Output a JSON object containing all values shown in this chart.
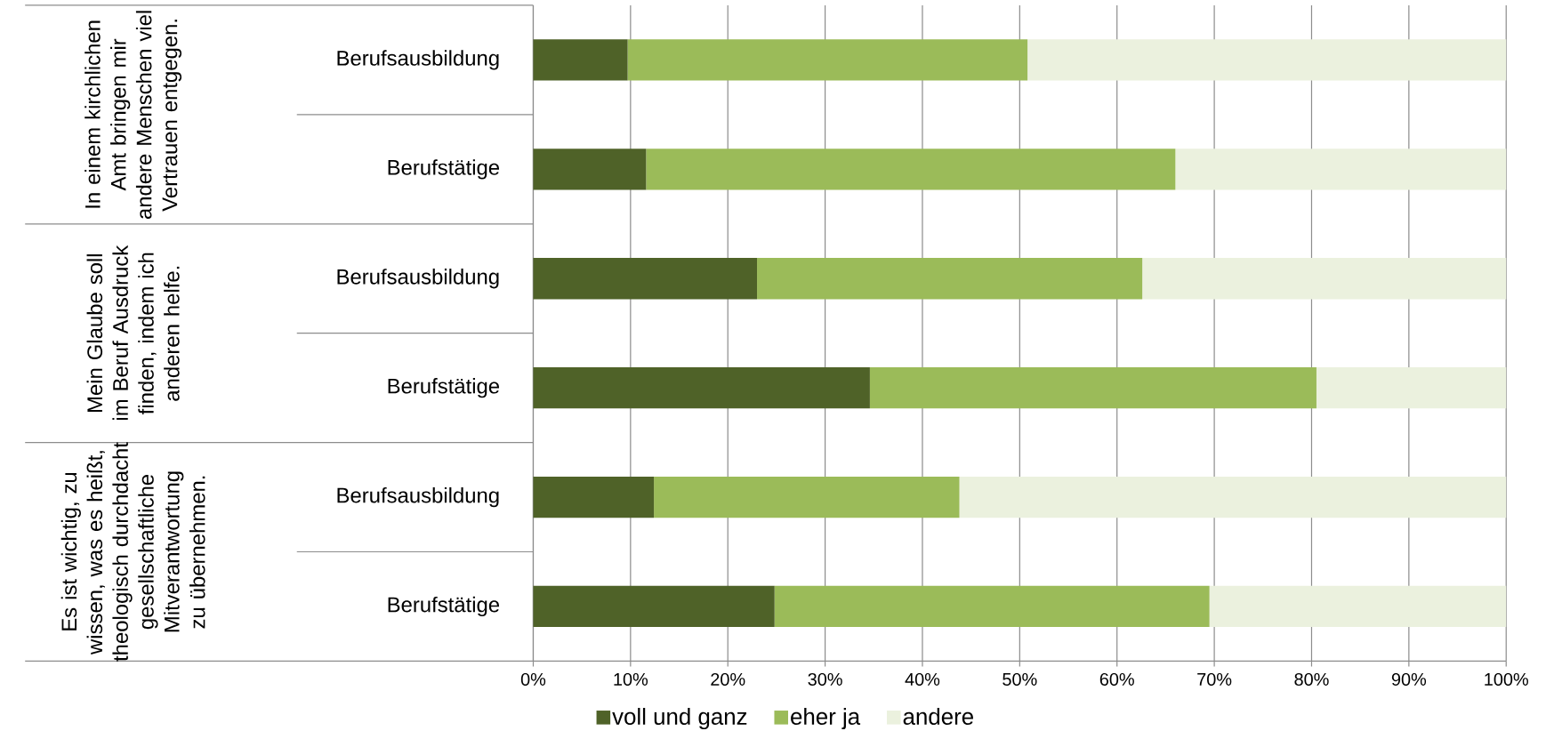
{
  "chart_data": {
    "type": "bar",
    "orientation": "horizontal",
    "stacked": true,
    "categories": [
      "Berufsausbildung",
      "Berufstätige",
      "Berufsausbildung",
      "Berufstätige",
      "Berufsausbildung",
      "Berufstätige"
    ],
    "series": [
      {
        "name": "voll und ganz",
        "color": "#4f6228",
        "values": [
          9.7,
          11.6,
          23.0,
          34.6,
          12.4,
          24.8
        ]
      },
      {
        "name": "eher ja",
        "color": "#9bbb59",
        "values": [
          41.1,
          54.4,
          39.6,
          45.9,
          31.4,
          44.7
        ]
      },
      {
        "name": "andere",
        "color": "#ebf1de",
        "values": [
          49.2,
          34.0,
          37.4,
          19.5,
          56.2,
          30.5
        ]
      }
    ],
    "xlim": [
      0,
      100
    ],
    "xticks": [
      {
        "value": 0,
        "label": "0%"
      },
      {
        "value": 10,
        "label": "10%"
      },
      {
        "value": 20,
        "label": "20%"
      },
      {
        "value": 30,
        "label": "30%"
      },
      {
        "value": 40,
        "label": "40%"
      },
      {
        "value": 50,
        "label": "50%"
      },
      {
        "value": 60,
        "label": "60%"
      },
      {
        "value": 70,
        "label": "70%"
      },
      {
        "value": 80,
        "label": "80%"
      },
      {
        "value": 90,
        "label": "90%"
      },
      {
        "value": 100,
        "label": "100%"
      }
    ],
    "grid": "x",
    "legend": "bottom",
    "annotations": [
      "In einem kirchlichen Amt bringen mir andere Menschen viel Vertrauen entgegen.",
      "Mein Glaube soll im Beruf Ausdruck finden, indem ich anderen helfe.",
      "Es ist wichtig, zu wissen, was es heißt, theologisch durchdacht gesellschaftliche Mitverantwortung zu übernehmen."
    ]
  }
}
